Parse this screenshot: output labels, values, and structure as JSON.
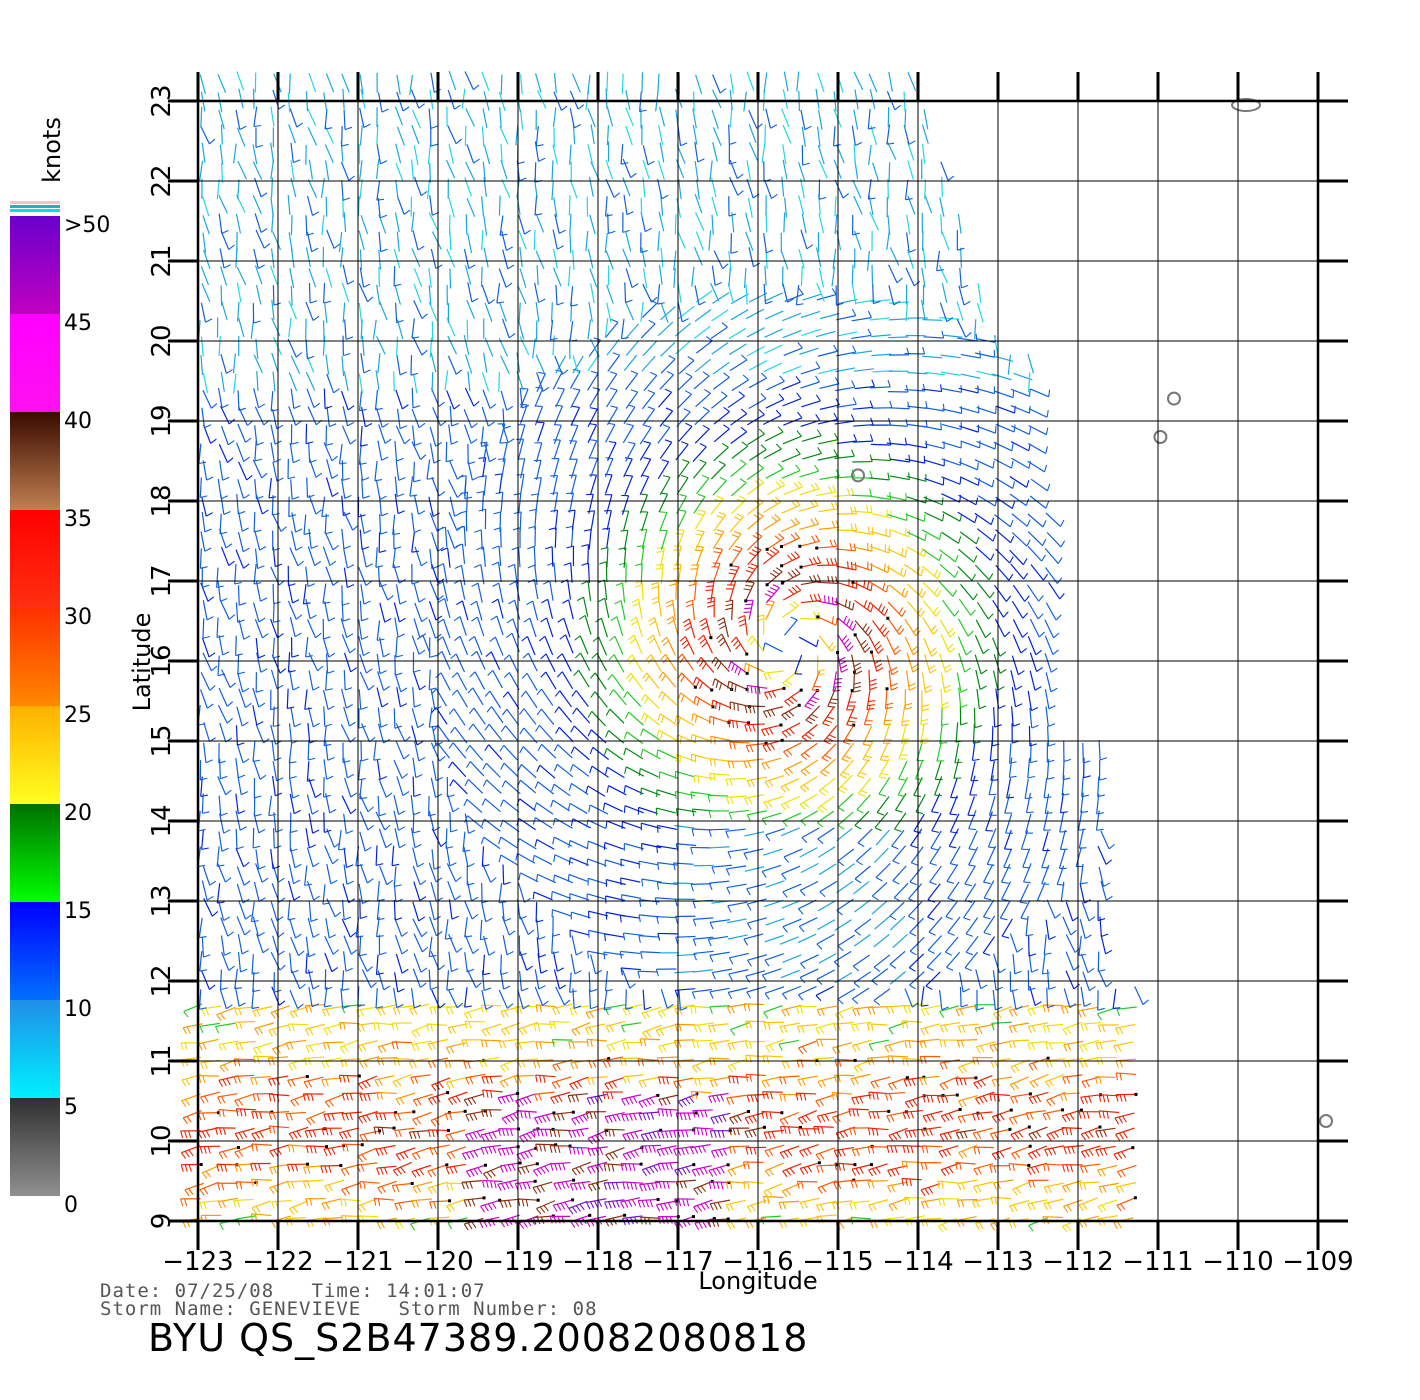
{
  "map": {
    "xlabel": "Longitude",
    "ylabel": "Latitude",
    "lon_range": [
      -123,
      -109
    ],
    "lat_range": [
      9,
      23
    ],
    "lon_ticks": [
      "−123",
      "−122",
      "−121",
      "−120",
      "−119",
      "−118",
      "−117",
      "−116",
      "−115",
      "−114",
      "−113",
      "−112",
      "−111",
      "−110",
      "−109"
    ],
    "lat_ticks": [
      "9",
      "10",
      "11",
      "12",
      "13",
      "14",
      "15",
      "16",
      "17",
      "18",
      "19",
      "20",
      "21",
      "22",
      "23"
    ],
    "storm_center": {
      "lon": -115.6,
      "lat": 16.2
    },
    "islands": [
      {
        "lon": -114.75,
        "lat": 18.32
      },
      {
        "lon": -110.97,
        "lat": 18.8
      },
      {
        "lon": -110.8,
        "lat": 19.28
      },
      {
        "lon": -109.9,
        "lat": 22.95
      },
      {
        "lon": -108.9,
        "lat": 10.25
      }
    ]
  },
  "colorbar": {
    "unit_label": "knots",
    "labels": [
      ">50",
      "45",
      "40",
      "35",
      "30",
      "25",
      "20",
      "15",
      "10",
      "5",
      "0"
    ],
    "bands": [
      {
        "from": 0,
        "to": 5,
        "top": "#303030",
        "bottom": "#909090"
      },
      {
        "from": 5,
        "to": 10,
        "top": "#1f8fe8",
        "bottom": "#00f0ff"
      },
      {
        "from": 10,
        "to": 15,
        "top": "#0000ff",
        "bottom": "#0070ff"
      },
      {
        "from": 15,
        "to": 20,
        "top": "#007000",
        "bottom": "#00ff00"
      },
      {
        "from": 20,
        "to": 25,
        "top": "#ffb000",
        "bottom": "#ffff20"
      },
      {
        "from": 25,
        "to": 30,
        "top": "#ff3000",
        "bottom": "#ff8800"
      },
      {
        "from": 30,
        "to": 35,
        "top": "#ff0000",
        "bottom": "#ff3010"
      },
      {
        "from": 35,
        "to": 40,
        "top": "#3a0a00",
        "bottom": "#c08050"
      },
      {
        "from": 40,
        "to": 45,
        "top": "#ff00ff",
        "bottom": "#ff10f0"
      },
      {
        "from": 45,
        "to": 50,
        "top": "#6a00cc",
        "bottom": "#c000c0"
      }
    ],
    "top_stripes": [
      "#ffc0cb",
      "#20b0c0",
      "#00e0e0"
    ]
  },
  "footer": {
    "date_time": "Date: 07/25/08   Time: 14:01:07",
    "storm": "Storm Name: GENEVIEVE   Storm Number: 08",
    "product_id": "BYU QS_S2B47389.20082080818"
  }
}
